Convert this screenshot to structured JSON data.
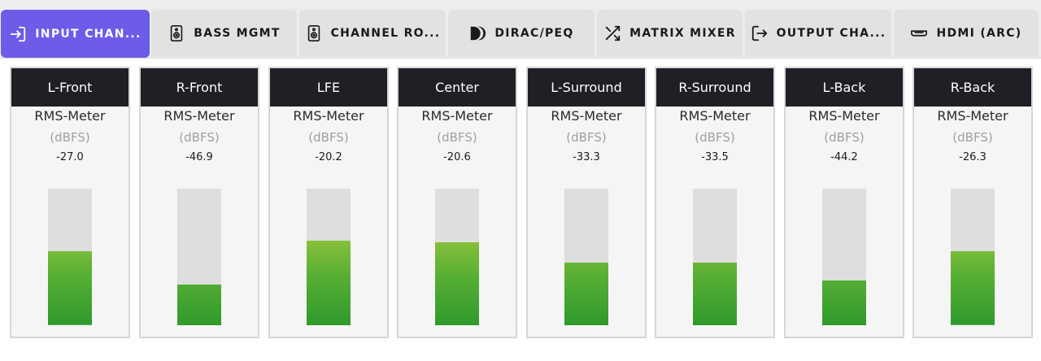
{
  "tabs": [
    {
      "label": "INPUT CHAN...",
      "icon": "input-icon",
      "active": true
    },
    {
      "label": "BASS MGMT",
      "icon": "speaker-icon",
      "active": false
    },
    {
      "label": "CHANNEL RO...",
      "icon": "speaker-icon",
      "active": false
    },
    {
      "label": "DIRAC/PEQ",
      "icon": "dirac-logo-icon",
      "active": false
    },
    {
      "label": "MATRIX MIXER",
      "icon": "shuffle-icon",
      "active": false
    },
    {
      "label": "OUTPUT CHA...",
      "icon": "output-icon",
      "active": false
    },
    {
      "label": "HDMI (ARC)",
      "icon": "hdmi-icon",
      "active": false
    }
  ],
  "meter_label": "RMS-Meter",
  "meter_unit": "(dBFS)",
  "meter_scale_min_dbfs": -60,
  "meter_scale_max_dbfs": 0,
  "channels": [
    {
      "name": "L-Front",
      "value": "-27.0",
      "level": 0.54
    },
    {
      "name": "R-Front",
      "value": "-46.9",
      "level": 0.3
    },
    {
      "name": "LFE",
      "value": "-20.2",
      "level": 0.62
    },
    {
      "name": "Center",
      "value": "-20.6",
      "level": 0.61
    },
    {
      "name": "L-Surround",
      "value": "-33.3",
      "level": 0.46
    },
    {
      "name": "R-Surround",
      "value": "-33.5",
      "level": 0.46
    },
    {
      "name": "L-Back",
      "value": "-44.2",
      "level": 0.33
    },
    {
      "name": "R-Back",
      "value": "-26.3",
      "level": 0.54
    }
  ],
  "colors": {
    "accent": "#6c5ce7",
    "header_bg": "#1f2025",
    "meter_green": "#2f9a2c",
    "meter_yellow": "#c9cf35",
    "meter_orange": "#d4a72e"
  }
}
